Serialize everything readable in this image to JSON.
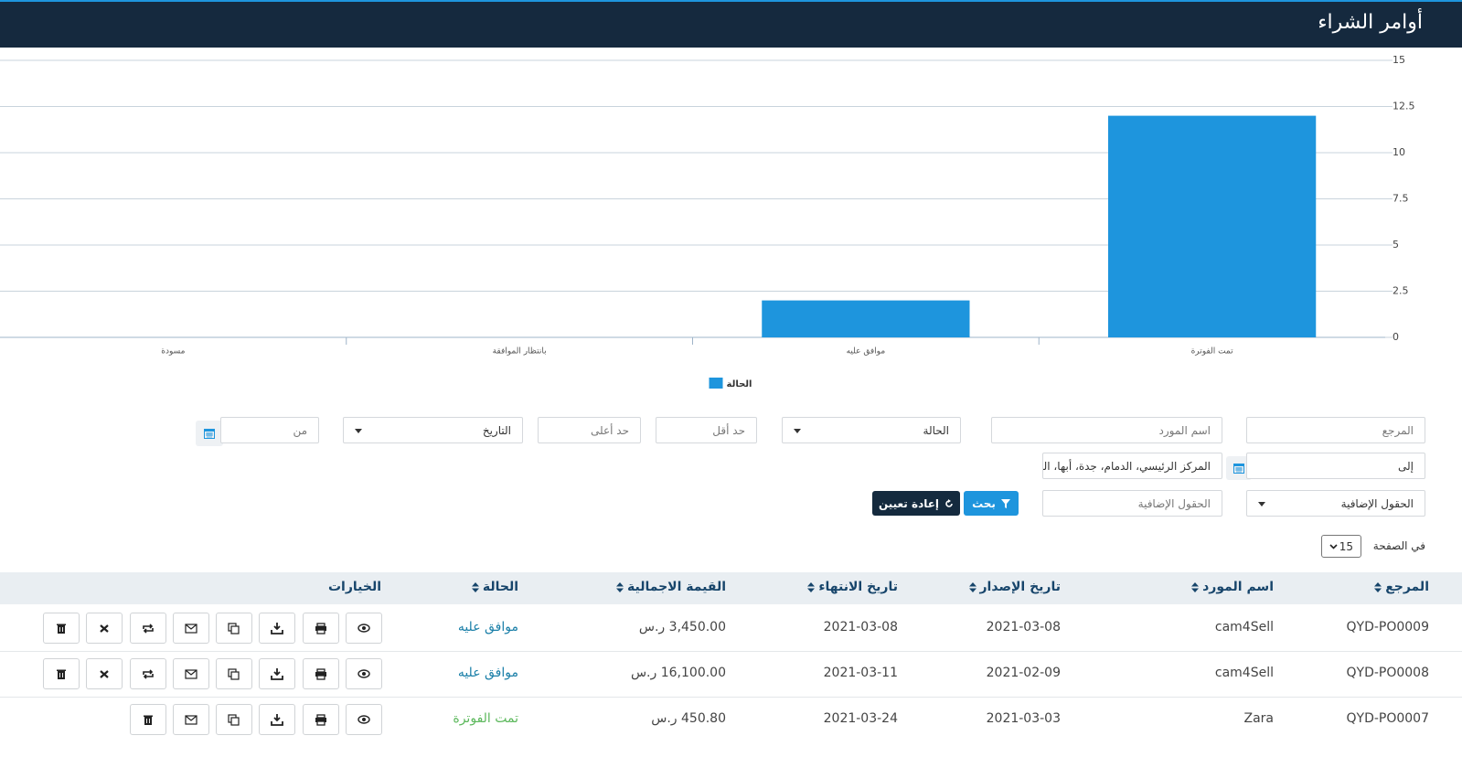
{
  "header": {
    "title": "أوامر الشراء"
  },
  "chart_data": {
    "type": "bar",
    "categories": [
      "تمت الفوترة",
      "موافق عليه",
      "بانتظار الموافقة",
      "مسودة"
    ],
    "series": [
      {
        "name": "الحالة",
        "color": "#1e95dd",
        "values": [
          12,
          2,
          0,
          0
        ]
      }
    ],
    "ylim": [
      0,
      15
    ],
    "yticks": [
      0,
      2.5,
      5,
      7.5,
      10,
      12.5,
      15
    ],
    "grid": true,
    "legend": "bottom"
  },
  "filters": {
    "reference": "المرجع",
    "supplier": "اسم المورد",
    "status": "الحالة",
    "min": "حد أقل",
    "max": "حد أعلى",
    "date": "التاريخ",
    "from": "من",
    "to": "إلى",
    "branches": "المركز الرئيسي، الدمام، جدة، أبها، الد",
    "extra_fields_select": "الحقول الإضافية",
    "extra_fields_input": "الحقول الإضافية",
    "search": "بحث",
    "reset": "إعادة تعيين"
  },
  "pagination": {
    "label": "في الصفحة",
    "per_page": 15
  },
  "table": {
    "columns": [
      "المرجع",
      "اسم المورد",
      "تاريخ الإصدار",
      "تاريخ الانتهاء",
      "القيمة الاجمالية",
      "الحالة",
      "الخيارات"
    ],
    "rows": [
      [
        "QYD-PO0009",
        "cam4Sell",
        "2021-03-08",
        "2021-03-08",
        "3,450.00 ر.س",
        "موافق عليه"
      ],
      [
        "QYD-PO0008",
        "cam4Sell",
        "2021-02-09",
        "2021-03-11",
        "16,100.00 ر.س",
        "موافق عليه"
      ],
      [
        "QYD-PO0007",
        "Zara",
        "2021-03-03",
        "2021-03-24",
        "450.80 ر.س",
        "تمت الفوترة"
      ]
    ]
  }
}
